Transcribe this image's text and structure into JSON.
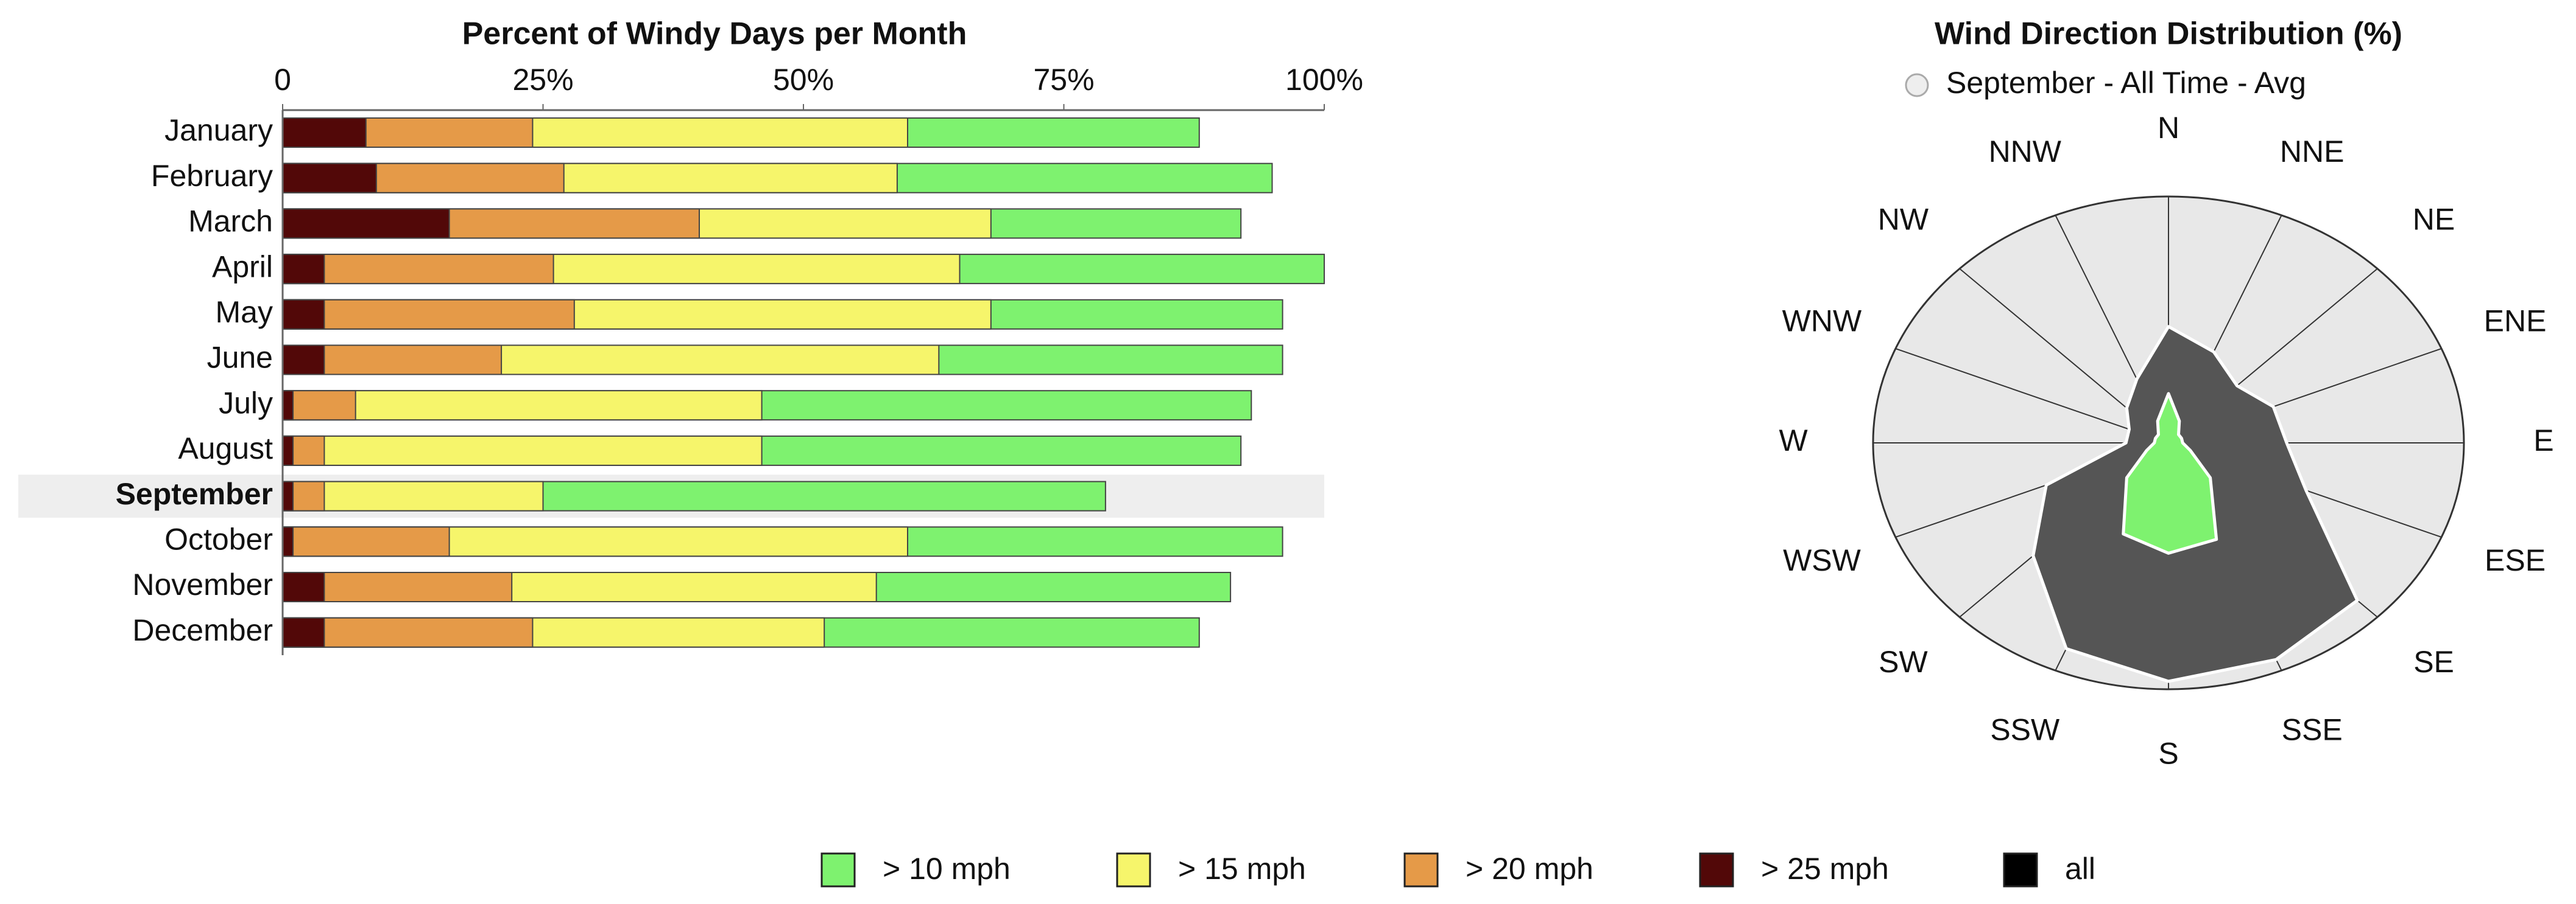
{
  "chart_data": [
    {
      "type": "hbar-overlap",
      "title": "Percent of Windy Days per Month",
      "categories": [
        "January",
        "February",
        "March",
        "April",
        "May",
        "June",
        "July",
        "August",
        "September",
        "October",
        "November",
        "December"
      ],
      "highlight_index": 8,
      "xlim": [
        0,
        100
      ],
      "xticks": [
        0,
        {
          "value": 25,
          "label": "25%"
        },
        {
          "value": 50,
          "label": "50%"
        },
        {
          "value": 75,
          "label": "75%"
        },
        {
          "value": 100,
          "label": "100%"
        }
      ],
      "series": [
        {
          "name": "> 10 mph",
          "color": "#7ef26f",
          "values": [
            88,
            95,
            92,
            100,
            96,
            96,
            93,
            92,
            79,
            96,
            91,
            88
          ]
        },
        {
          "name": "> 15 mph",
          "color": "#f6f56b",
          "values": [
            60,
            59,
            68,
            65,
            68,
            63,
            46,
            46,
            25,
            60,
            57,
            52
          ]
        },
        {
          "name": "> 20 mph",
          "color": "#e59a48",
          "values": [
            24,
            27,
            40,
            26,
            28,
            21,
            7,
            4,
            4,
            16,
            22,
            24
          ]
        },
        {
          "name": "> 25 mph",
          "color": "#520808",
          "values": [
            8,
            9,
            16,
            4,
            4,
            4,
            1,
            1,
            1,
            1,
            4,
            4
          ]
        }
      ]
    },
    {
      "type": "rose",
      "title": "Wind Direction Distribution (%)",
      "subtitle": "September - All Time - Avg",
      "categories": [
        "N",
        "NNE",
        "NE",
        "ENE",
        "E",
        "ESE",
        "SE",
        "SSE",
        "S",
        "SSW",
        "SW",
        "WSW",
        "W",
        "WNW",
        "NW",
        "NNW"
      ],
      "rlim": [
        0,
        12.5
      ],
      "series": [
        {
          "name": "all",
          "color": "#000000",
          "values": [
            5.9,
            5,
            4.1,
            4.8,
            5,
            6.3,
            11.3,
            11.9,
            12.1,
            11.3,
            8.1,
            5.6,
            1.8,
            1.8,
            2.5,
            3.5
          ]
        },
        {
          "name": "> 10 mph",
          "color": "#7ef26f",
          "values": [
            2.5,
            1.2,
            0.6,
            0.6,
            0.6,
            1,
            2.5,
            5.3,
            5.6,
            5,
            2.5,
            1,
            0.6,
            0.6,
            0.6,
            1.2
          ]
        }
      ]
    }
  ]
}
